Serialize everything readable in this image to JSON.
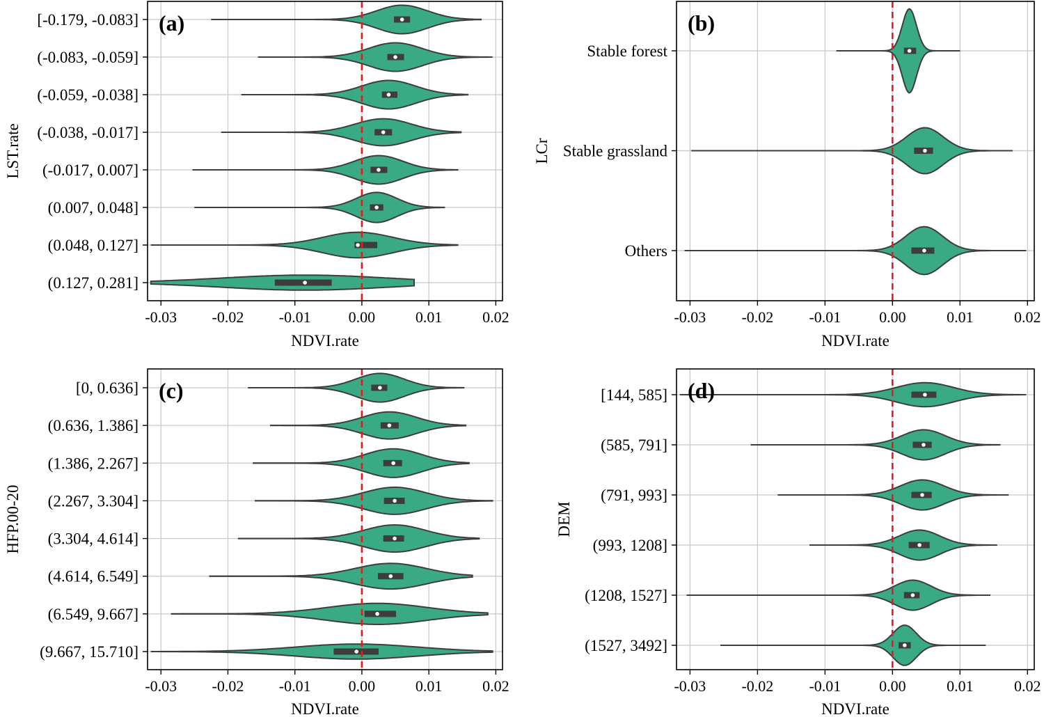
{
  "colors": {
    "violin_fill": "#3aaa85",
    "violin_edge": "#3d3d3d",
    "zero_line": "#e41a1c",
    "grid": "#c8c8c8",
    "box": "#3d3d3d",
    "median": "#ffffff"
  },
  "chart_data": [
    {
      "panel_label": "(a)",
      "type": "violin",
      "orientation": "horizontal",
      "xlabel": "NDVI.rate",
      "ylabel": "LST.rate",
      "xlim": [
        -0.032,
        0.021
      ],
      "xticks": [
        -0.03,
        -0.02,
        -0.01,
        0.0,
        0.01,
        0.02
      ],
      "xtick_labels": [
        "-0.03",
        "-0.02",
        "-0.01",
        "0.00",
        "0.01",
        "0.02"
      ],
      "reference_line_x": 0.0,
      "categories": [
        "[-0.179, -0.083]",
        "(-0.083, -0.059]",
        "(-0.059, -0.038]",
        "(-0.038, -0.017]",
        "(-0.017, 0.007]",
        "(0.007, 0.048]",
        "(0.048, 0.127]",
        "(0.127, 0.281]"
      ],
      "violins": [
        {
          "min": -0.0225,
          "max": 0.0178,
          "q1": 0.0048,
          "q3": 0.0072,
          "median": 0.006,
          "bw": 0.0038,
          "hw": 0.38
        },
        {
          "min": -0.0155,
          "max": 0.0195,
          "q1": 0.0038,
          "q3": 0.0063,
          "median": 0.005,
          "bw": 0.004,
          "hw": 0.38
        },
        {
          "min": -0.018,
          "max": 0.0158,
          "q1": 0.003,
          "q3": 0.0053,
          "median": 0.004,
          "bw": 0.004,
          "hw": 0.38
        },
        {
          "min": -0.021,
          "max": 0.0148,
          "q1": 0.0019,
          "q3": 0.0045,
          "median": 0.0032,
          "bw": 0.0042,
          "hw": 0.36
        },
        {
          "min": -0.0253,
          "max": 0.0143,
          "q1": 0.0013,
          "q3": 0.0038,
          "median": 0.0025,
          "bw": 0.0036,
          "hw": 0.38
        },
        {
          "min": -0.025,
          "max": 0.0123,
          "q1": 0.0012,
          "q3": 0.0032,
          "median": 0.0022,
          "bw": 0.003,
          "hw": 0.4
        },
        {
          "min": -0.0315,
          "max": 0.0143,
          "q1": -0.0011,
          "q3": 0.0023,
          "median": -0.0006,
          "bw": 0.0052,
          "hw": 0.34
        },
        {
          "min": -0.0315,
          "max": 0.0078,
          "q1": -0.013,
          "q3": -0.0045,
          "median": -0.0085,
          "bw": 0.0125,
          "hw": 0.2
        }
      ]
    },
    {
      "panel_label": "(b)",
      "type": "violin",
      "orientation": "horizontal",
      "xlabel": "NDVI.rate",
      "ylabel": "LCr",
      "xlim": [
        -0.032,
        0.021
      ],
      "xticks": [
        -0.03,
        -0.02,
        -0.01,
        0.0,
        0.01,
        0.02
      ],
      "xtick_labels": [
        "-0.03",
        "-0.02",
        "-0.01",
        "0.00",
        "0.01",
        "0.02"
      ],
      "reference_line_x": 0.0,
      "categories": [
        "Stable forest",
        "Stable grassland",
        "Others"
      ],
      "violins": [
        {
          "min": -0.0083,
          "max": 0.01,
          "q1": 0.0017,
          "q3": 0.0035,
          "median": 0.0025,
          "bw": 0.00105,
          "hw": 0.42
        },
        {
          "min": -0.0298,
          "max": 0.0178,
          "q1": 0.0032,
          "q3": 0.006,
          "median": 0.0048,
          "bw": 0.0027,
          "hw": 0.23
        },
        {
          "min": -0.0308,
          "max": 0.0198,
          "q1": 0.0028,
          "q3": 0.0062,
          "median": 0.0047,
          "bw": 0.0027,
          "hw": 0.24
        }
      ]
    },
    {
      "panel_label": "(c)",
      "type": "violin",
      "orientation": "horizontal",
      "xlabel": "NDVI.rate",
      "ylabel": "HFP.00-20",
      "xlim": [
        -0.032,
        0.021
      ],
      "xticks": [
        -0.03,
        -0.02,
        -0.01,
        0.0,
        0.01,
        0.02
      ],
      "xtick_labels": [
        "-0.03",
        "-0.02",
        "-0.01",
        "0.00",
        "0.01",
        "0.02"
      ],
      "reference_line_x": 0.0,
      "categories": [
        "[0, 0.636]",
        "(0.636, 1.386]",
        "(1.386, 2.267]",
        "(2.267, 3.304]",
        "(3.304, 4.614]",
        "(4.614, 6.549]",
        "(6.549, 9.667]",
        "(9.667, 15.710]"
      ],
      "violins": [
        {
          "min": -0.017,
          "max": 0.0153,
          "q1": 0.0014,
          "q3": 0.0038,
          "median": 0.0027,
          "bw": 0.0036,
          "hw": 0.38
        },
        {
          "min": -0.0137,
          "max": 0.0155,
          "q1": 0.0028,
          "q3": 0.0055,
          "median": 0.0041,
          "bw": 0.004,
          "hw": 0.36
        },
        {
          "min": -0.0163,
          "max": 0.016,
          "q1": 0.0032,
          "q3": 0.006,
          "median": 0.0047,
          "bw": 0.0042,
          "hw": 0.38
        },
        {
          "min": -0.016,
          "max": 0.0195,
          "q1": 0.0033,
          "q3": 0.0064,
          "median": 0.0049,
          "bw": 0.0046,
          "hw": 0.36
        },
        {
          "min": -0.0185,
          "max": 0.0175,
          "q1": 0.0032,
          "q3": 0.0063,
          "median": 0.0049,
          "bw": 0.0046,
          "hw": 0.36
        },
        {
          "min": -0.0228,
          "max": 0.0165,
          "q1": 0.0024,
          "q3": 0.0062,
          "median": 0.0043,
          "bw": 0.0053,
          "hw": 0.34
        },
        {
          "min": -0.0285,
          "max": 0.0188,
          "q1": 0.0004,
          "q3": 0.0051,
          "median": 0.0023,
          "bw": 0.0075,
          "hw": 0.28
        },
        {
          "min": -0.0315,
          "max": 0.0195,
          "q1": -0.0042,
          "q3": 0.0025,
          "median": -0.0008,
          "bw": 0.009,
          "hw": 0.2
        }
      ]
    },
    {
      "panel_label": "(d)",
      "type": "violin",
      "orientation": "horizontal",
      "xlabel": "NDVI.rate",
      "ylabel": "DEM",
      "xlim": [
        -0.032,
        0.021
      ],
      "xticks": [
        -0.03,
        -0.02,
        -0.01,
        0.0,
        0.01,
        0.02
      ],
      "xtick_labels": [
        "-0.03",
        "-0.02",
        "-0.01",
        "0.00",
        "0.01",
        "0.02"
      ],
      "reference_line_x": 0.0,
      "categories": [
        "[144, 585]",
        "(585, 791]",
        "(791, 993]",
        "(993, 1208]",
        "(1208, 1527]",
        "(1527, 3492]"
      ],
      "violins": [
        {
          "min": -0.0315,
          "max": 0.0198,
          "q1": 0.0028,
          "q3": 0.0065,
          "median": 0.0048,
          "bw": 0.0042,
          "hw": 0.24
        },
        {
          "min": -0.021,
          "max": 0.016,
          "q1": 0.003,
          "q3": 0.0058,
          "median": 0.0046,
          "bw": 0.0032,
          "hw": 0.3
        },
        {
          "min": -0.017,
          "max": 0.0172,
          "q1": 0.0028,
          "q3": 0.0058,
          "median": 0.0044,
          "bw": 0.0032,
          "hw": 0.3
        },
        {
          "min": -0.0123,
          "max": 0.0155,
          "q1": 0.0024,
          "q3": 0.0055,
          "median": 0.004,
          "bw": 0.003,
          "hw": 0.3
        },
        {
          "min": -0.0305,
          "max": 0.0145,
          "q1": 0.0017,
          "q3": 0.004,
          "median": 0.003,
          "bw": 0.0027,
          "hw": 0.3
        },
        {
          "min": -0.0255,
          "max": 0.0138,
          "q1": 0.0009,
          "q3": 0.0027,
          "median": 0.0018,
          "bw": 0.0017,
          "hw": 0.4
        }
      ]
    }
  ]
}
